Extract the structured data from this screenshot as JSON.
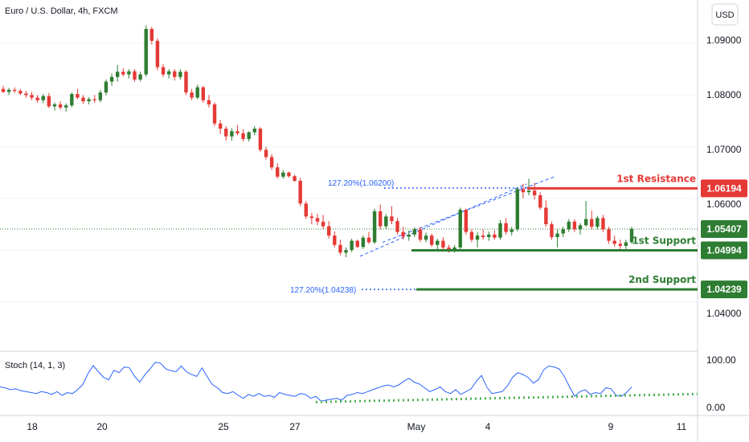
{
  "chart_data": {
    "type": "candlestick",
    "title": "Euro / U.S. Dollar, 4h, FXCM",
    "currency": "USD",
    "y_ticks": [
      "1.09000",
      "1.08000",
      "1.07000",
      "1.06000",
      "1.04000"
    ],
    "ylim": [
      1.0312,
      1.0984
    ],
    "x_ticks": [
      "18",
      "20",
      "25",
      "27",
      "May",
      "4",
      "9",
      "11"
    ],
    "bull_color": "#2e7d32",
    "bear_color": "#e53935",
    "candles": [
      [
        1.0812,
        1.0818,
        1.0804,
        1.0806
      ],
      [
        1.0806,
        1.0814,
        1.08,
        1.081
      ],
      [
        1.081,
        1.0815,
        1.0804,
        1.0808
      ],
      [
        1.0808,
        1.0812,
        1.08,
        1.0803
      ],
      [
        1.0803,
        1.0808,
        1.0795,
        1.08
      ],
      [
        1.08,
        1.0806,
        1.079,
        1.0795
      ],
      [
        1.0795,
        1.08,
        1.0785,
        1.079
      ],
      [
        1.079,
        1.0802,
        1.0784,
        1.0798
      ],
      [
        1.0798,
        1.0804,
        1.0775,
        1.0778
      ],
      [
        1.0778,
        1.0786,
        1.077,
        1.0782
      ],
      [
        1.0782,
        1.0788,
        1.0772,
        1.0776
      ],
      [
        1.0776,
        1.0784,
        1.0768,
        1.078
      ],
      [
        1.078,
        1.0805,
        1.0776,
        1.0802
      ],
      [
        1.0802,
        1.0812,
        1.0792,
        1.0795
      ],
      [
        1.0795,
        1.08,
        1.0783,
        1.0788
      ],
      [
        1.0788,
        1.0796,
        1.0782,
        1.0792
      ],
      [
        1.0792,
        1.08,
        1.0785,
        1.079
      ],
      [
        1.079,
        1.081,
        1.0786,
        1.0805
      ],
      [
        1.0805,
        1.083,
        1.08,
        1.0826
      ],
      [
        1.0826,
        1.0842,
        1.0818,
        1.0835
      ],
      [
        1.0835,
        1.0858,
        1.0826,
        1.0845
      ],
      [
        1.0845,
        1.0852,
        1.0836,
        1.084
      ],
      [
        1.084,
        1.085,
        1.0832,
        1.0846
      ],
      [
        1.0846,
        1.085,
        1.0826,
        1.083
      ],
      [
        1.083,
        1.0845,
        1.0826,
        1.084
      ],
      [
        1.084,
        1.0935,
        1.0836,
        1.0928
      ],
      [
        1.0928,
        1.0932,
        1.0898,
        1.0905
      ],
      [
        1.0905,
        1.091,
        1.0848,
        1.0854
      ],
      [
        1.0854,
        1.086,
        1.0835,
        1.084
      ],
      [
        1.084,
        1.085,
        1.0832,
        1.0846
      ],
      [
        1.0846,
        1.085,
        1.0828,
        1.0835
      ],
      [
        1.0835,
        1.085,
        1.083,
        1.0845
      ],
      [
        1.0845,
        1.0848,
        1.08,
        1.0805
      ],
      [
        1.0805,
        1.0812,
        1.079,
        1.0795
      ],
      [
        1.0795,
        1.082,
        1.0792,
        1.0815
      ],
      [
        1.0815,
        1.0818,
        1.0785,
        1.079
      ],
      [
        1.079,
        1.08,
        1.0776,
        1.0782
      ],
      [
        1.0782,
        1.0786,
        1.074,
        1.0745
      ],
      [
        1.0745,
        1.0752,
        1.0725,
        1.0735
      ],
      [
        1.0735,
        1.074,
        1.0712,
        1.072
      ],
      [
        1.072,
        1.0736,
        1.0712,
        1.073
      ],
      [
        1.073,
        1.0742,
        1.0722,
        1.0726
      ],
      [
        1.0726,
        1.0734,
        1.071,
        1.0715
      ],
      [
        1.0715,
        1.073,
        1.071,
        1.0728
      ],
      [
        1.0728,
        1.074,
        1.0722,
        1.0735
      ],
      [
        1.0735,
        1.0738,
        1.069,
        1.0694
      ],
      [
        1.0694,
        1.07,
        1.0675,
        1.068
      ],
      [
        1.068,
        1.0686,
        1.0655,
        1.066
      ],
      [
        1.066,
        1.0668,
        1.0638,
        1.0642
      ],
      [
        1.0642,
        1.0655,
        1.0638,
        1.065
      ],
      [
        1.065,
        1.0652,
        1.064,
        1.0643
      ],
      [
        1.0643,
        1.0646,
        1.0632,
        1.0634
      ],
      [
        1.0634,
        1.064,
        1.0585,
        1.059
      ],
      [
        1.059,
        1.0595,
        1.056,
        1.0565
      ],
      [
        1.0565,
        1.0572,
        1.055,
        1.0562
      ],
      [
        1.0562,
        1.057,
        1.0548,
        1.0555
      ],
      [
        1.0555,
        1.0568,
        1.054,
        1.0546
      ],
      [
        1.0546,
        1.0556,
        1.0522,
        1.0528
      ],
      [
        1.0528,
        1.0536,
        1.0505,
        1.051
      ],
      [
        1.051,
        1.052,
        1.049,
        1.0495
      ],
      [
        1.0495,
        1.0505,
        1.0486,
        1.05
      ],
      [
        1.05,
        1.0522,
        1.0496,
        1.0518
      ],
      [
        1.0518,
        1.052,
        1.0504,
        1.0506
      ],
      [
        1.0506,
        1.0528,
        1.0502,
        1.0524
      ],
      [
        1.0524,
        1.0535,
        1.0512,
        1.0515
      ],
      [
        1.0515,
        1.058,
        1.0512,
        1.0575
      ],
      [
        1.0575,
        1.0588,
        1.054,
        1.0546
      ],
      [
        1.0546,
        1.057,
        1.054,
        1.0565
      ],
      [
        1.0565,
        1.0585,
        1.055,
        1.0556
      ],
      [
        1.0556,
        1.0562,
        1.053,
        1.0535
      ],
      [
        1.0535,
        1.0545,
        1.052,
        1.0526
      ],
      [
        1.0526,
        1.0538,
        1.0518,
        1.053
      ],
      [
        1.053,
        1.0544,
        1.0525,
        1.054
      ],
      [
        1.054,
        1.0545,
        1.0515,
        1.052
      ],
      [
        1.052,
        1.0534,
        1.0515,
        1.0528
      ],
      [
        1.0528,
        1.0532,
        1.0506,
        1.051
      ],
      [
        1.051,
        1.0522,
        1.05,
        1.0518
      ],
      [
        1.0518,
        1.0525,
        1.05,
        1.0505
      ],
      [
        1.0505,
        1.051,
        1.0495,
        1.05
      ],
      [
        1.05,
        1.051,
        1.0495,
        1.0505
      ],
      [
        1.0505,
        1.0582,
        1.05,
        1.0578
      ],
      [
        1.0578,
        1.058,
        1.053,
        1.0535
      ],
      [
        1.0535,
        1.054,
        1.0515,
        1.052
      ],
      [
        1.052,
        1.0535,
        1.0505,
        1.0528
      ],
      [
        1.0528,
        1.054,
        1.052,
        1.0525
      ],
      [
        1.0525,
        1.0536,
        1.0518,
        1.053
      ],
      [
        1.053,
        1.0538,
        1.052,
        1.0524
      ],
      [
        1.0524,
        1.0558,
        1.052,
        1.0552
      ],
      [
        1.0552,
        1.0562,
        1.053,
        1.0535
      ],
      [
        1.0535,
        1.0545,
        1.0528,
        1.054
      ],
      [
        1.054,
        1.0622,
        1.0536,
        1.0618
      ],
      [
        1.0618,
        1.0628,
        1.06,
        1.0612
      ],
      [
        1.0612,
        1.0638,
        1.0606,
        1.0615
      ],
      [
        1.0615,
        1.063,
        1.0598,
        1.0606
      ],
      [
        1.0606,
        1.0612,
        1.0578,
        1.0582
      ],
      [
        1.0582,
        1.0596,
        1.0545,
        1.055
      ],
      [
        1.055,
        1.0555,
        1.052,
        1.0525
      ],
      [
        1.0525,
        1.054,
        1.0505,
        1.0532
      ],
      [
        1.0532,
        1.0545,
        1.0525,
        1.054
      ],
      [
        1.054,
        1.056,
        1.0535,
        1.0555
      ],
      [
        1.0555,
        1.056,
        1.0535,
        1.054
      ],
      [
        1.054,
        1.0552,
        1.053,
        1.0548
      ],
      [
        1.0548,
        1.0595,
        1.0545,
        1.056
      ],
      [
        1.056,
        1.0576,
        1.054,
        1.0545
      ],
      [
        1.0545,
        1.0566,
        1.054,
        1.0562
      ],
      [
        1.0562,
        1.0568,
        1.0535,
        1.054
      ],
      [
        1.054,
        1.0545,
        1.0512,
        1.0518
      ],
      [
        1.0518,
        1.0528,
        1.0506,
        1.0512
      ],
      [
        1.0512,
        1.052,
        1.0502,
        1.0508
      ],
      [
        1.0508,
        1.052,
        1.0502,
        1.0515
      ],
      [
        1.0515,
        1.0545,
        1.0512,
        1.0541
      ]
    ],
    "current_price": "1.05407",
    "levels": [
      {
        "label": "1st Resistance",
        "value": 1.06194,
        "tag": "1.06194",
        "color": "#e53935"
      },
      {
        "label": "1st Support",
        "value": 1.04994,
        "tag": "1.04994",
        "color": "#2e7d32"
      },
      {
        "label": "2nd Support",
        "value": 1.04239,
        "tag": "1.04239",
        "color": "#2e7d32"
      }
    ],
    "fib_upper": {
      "text": "127.20%(1.06200)",
      "value": 1.062
    },
    "fib_lower": {
      "text": "127.20%(1.04238)",
      "value": 1.04238
    },
    "trend_channel": [
      [
        1.0488,
        1.0628
      ],
      [
        1.0515,
        1.0642
      ]
    ],
    "stoch": {
      "label": "Stoch (14, 1, 3)",
      "y_ticks": [
        "100.00",
        "0.00"
      ],
      "ylim": [
        0,
        100
      ],
      "k": [
        40,
        38,
        34,
        36,
        32,
        30,
        28,
        26,
        30,
        28,
        24,
        30,
        22,
        28,
        26,
        34,
        45,
        68,
        85,
        72,
        60,
        55,
        75,
        70,
        82,
        80,
        62,
        50,
        66,
        78,
        92,
        90,
        78,
        74,
        72,
        84,
        72,
        66,
        62,
        80,
        62,
        45,
        38,
        28,
        26,
        30,
        22,
        16,
        24,
        20,
        26,
        20,
        22,
        18,
        28,
        24,
        22,
        20,
        26,
        24,
        16,
        20,
        10,
        12,
        14,
        16,
        12,
        22,
        24,
        28,
        26,
        30,
        34,
        38,
        42,
        44,
        40,
        44,
        52,
        58,
        50,
        46,
        38,
        30,
        34,
        40,
        30,
        26,
        34,
        24,
        30,
        36,
        52,
        64,
        40,
        26,
        28,
        30,
        42,
        60,
        70,
        66,
        60,
        48,
        55,
        76,
        84,
        82,
        78,
        62,
        40,
        20,
        30,
        34,
        24,
        28,
        26,
        38,
        36,
        22,
        20,
        28,
        40
      ],
      "signal_line": [
        8,
        25
      ],
      "signal_color": "#4caf50"
    }
  }
}
